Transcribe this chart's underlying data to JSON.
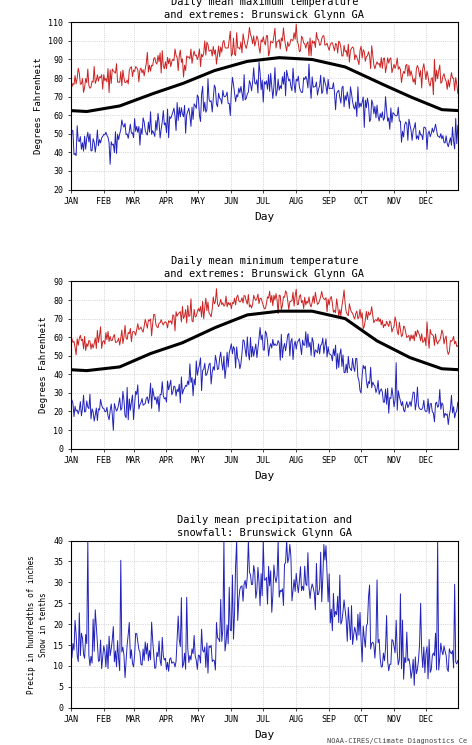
{
  "title1": "Daily mean maximum temperature\nand extremes: Brunswick Glynn GA",
  "title2": "Daily mean minimum temperature\nand extremes: Brunswick Glynn GA",
  "title3": "Daily mean precipitation and\nsnowfall: Brunswick Glynn GA",
  "ylabel1": "Degrees Fahrenheit",
  "ylabel2": "Degrees Fahrenheit",
  "ylabel3": "Precip in hundredths of inches\nSnow in tenths",
  "xlabel": "Day",
  "months": [
    "JAN",
    "FEB",
    "MAR",
    "APR",
    "MAY",
    "JUN",
    "JUL",
    "AUG",
    "SEP",
    "OCT",
    "NOV",
    "DEC"
  ],
  "ylim1": [
    20,
    110
  ],
  "ylim2": [
    0,
    90
  ],
  "ylim3": [
    0,
    40
  ],
  "yticks1": [
    20,
    30,
    40,
    50,
    60,
    70,
    80,
    90,
    100,
    110
  ],
  "yticks2": [
    0,
    10,
    20,
    30,
    40,
    50,
    60,
    70,
    80,
    90
  ],
  "yticks3": [
    0,
    5,
    10,
    15,
    20,
    25,
    30,
    35,
    40
  ],
  "mean_max_base": [
    62,
    65,
    71,
    77,
    84,
    89,
    91,
    90,
    86,
    78,
    70,
    63
  ],
  "mean_min_base": [
    42,
    44,
    51,
    57,
    65,
    72,
    74,
    74,
    70,
    58,
    49,
    43
  ],
  "record_high_base": [
    78,
    80,
    87,
    91,
    95,
    98,
    100,
    99,
    96,
    90,
    83,
    79
  ],
  "record_low_max_base": [
    46,
    48,
    54,
    61,
    68,
    75,
    78,
    77,
    72,
    61,
    52,
    46
  ],
  "record_high_min_base": [
    58,
    60,
    66,
    72,
    77,
    79,
    80,
    79,
    76,
    68,
    62,
    59
  ],
  "record_low_base": [
    22,
    22,
    27,
    34,
    44,
    52,
    57,
    57,
    47,
    32,
    24,
    19
  ],
  "precip_base": [
    12,
    10,
    11,
    10,
    9,
    28,
    27,
    27,
    18,
    12,
    9,
    10
  ],
  "background_color": "#ffffff",
  "line_color_red": "#cc2222",
  "line_color_blue": "#2222bb",
  "line_color_black": "#000000",
  "grid_color": "#999999",
  "watermark": "NOAA-CIRES/Climate Diagnostics Ce",
  "month_starts": [
    0,
    31,
    59,
    90,
    120,
    151,
    181,
    212,
    243,
    273,
    304,
    334
  ],
  "title_fontsize": 7.5,
  "tick_fontsize": 6,
  "label_fontsize": 6.5,
  "xlabel_fontsize": 8,
  "watermark_fontsize": 5
}
